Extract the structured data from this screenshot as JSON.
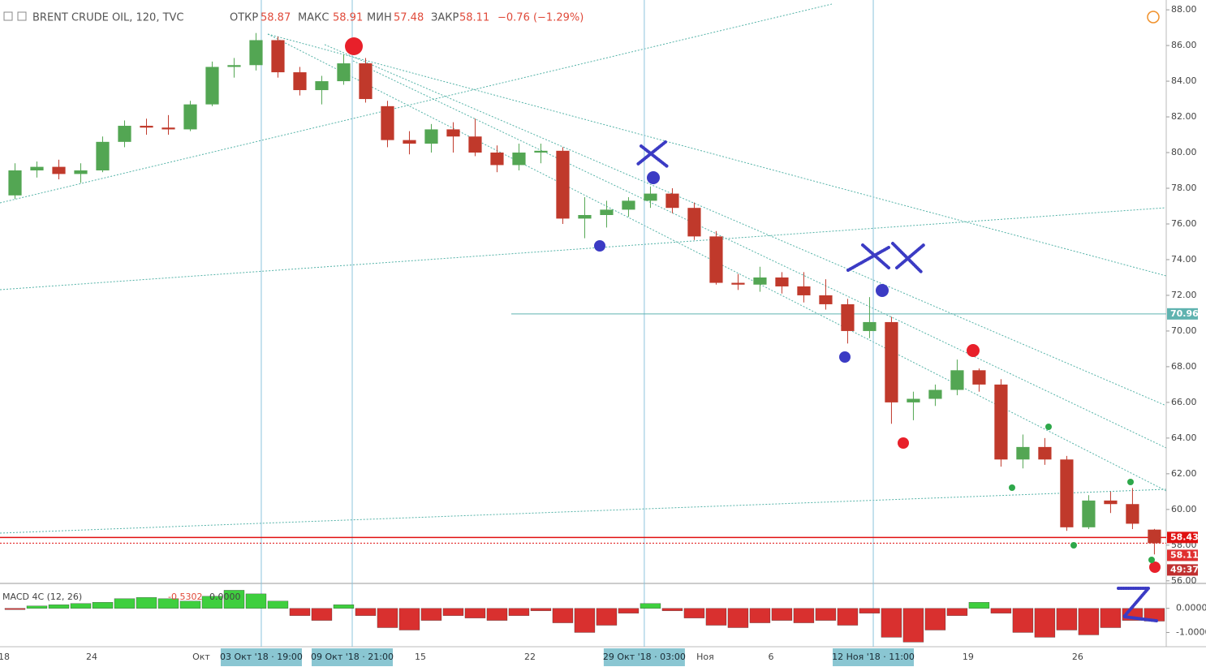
{
  "chart_data": {
    "type": "candlestick",
    "title": "BRENT CRUDE OIL, 120, TVC",
    "open_label": "ОТКР",
    "high_label": "МАКС",
    "low_label": "МИН",
    "close_label": "ЗАКР",
    "change_text": "−0.76 (−1.29%)",
    "countdown": "49:37",
    "categories": [
      "18",
      null,
      null,
      null,
      "24",
      null,
      null,
      null,
      null,
      "Окт",
      null,
      null,
      null,
      null,
      null,
      null,
      null,
      null,
      null,
      "15",
      null,
      null,
      null,
      null,
      "22",
      null,
      null,
      null,
      null,
      null,
      null,
      null,
      "Ноя",
      null,
      null,
      "6",
      null,
      null,
      null,
      null,
      null,
      null,
      null,
      null,
      "19",
      null,
      null,
      null,
      null,
      "26",
      null,
      null,
      null
    ],
    "xlim": [
      -0.185,
      53.04
    ],
    "open": [
      77.6,
      79.0,
      79.2,
      78.8,
      79.0,
      80.6,
      81.5,
      81.4,
      81.3,
      82.7,
      84.8,
      84.9,
      86.3,
      84.5,
      83.5,
      84.0,
      85.0,
      82.6,
      80.7,
      80.5,
      81.3,
      80.9,
      80.0,
      79.3,
      80.0,
      80.1,
      76.3,
      76.5,
      76.8,
      77.3,
      77.7,
      76.9,
      75.3,
      72.7,
      72.6,
      73.0,
      72.5,
      72.0,
      71.5,
      70.0,
      70.5,
      66.0,
      66.2,
      66.7,
      67.8,
      67.0,
      62.8,
      63.5,
      62.8,
      59.0,
      60.5,
      60.3,
      58.87
    ],
    "high": [
      79.4,
      79.5,
      79.6,
      79.4,
      80.9,
      81.8,
      81.9,
      82.1,
      82.9,
      85.1,
      85.3,
      86.7,
      86.5,
      84.8,
      84.3,
      85.5,
      85.3,
      82.9,
      81.2,
      81.6,
      81.7,
      81.9,
      80.4,
      80.5,
      80.5,
      80.3,
      77.5,
      77.3,
      77.5,
      78.1,
      78.0,
      77.2,
      75.6,
      73.2,
      73.6,
      73.3,
      73.3,
      72.9,
      71.8,
      71.9,
      70.8,
      66.6,
      67.0,
      68.4,
      67.9,
      67.3,
      64.2,
      64.0,
      63.0,
      60.8,
      61.0,
      61.2,
      58.91
    ],
    "low": [
      77.4,
      78.6,
      78.5,
      78.3,
      78.9,
      80.3,
      81.0,
      81.0,
      81.2,
      82.6,
      84.2,
      84.6,
      84.2,
      83.2,
      82.7,
      83.8,
      82.8,
      80.3,
      79.9,
      80.0,
      80.0,
      79.8,
      78.9,
      79.0,
      79.4,
      76.0,
      75.2,
      75.8,
      76.4,
      76.9,
      76.6,
      75.1,
      72.6,
      72.3,
      72.2,
      72.1,
      71.6,
      71.2,
      69.3,
      69.6,
      64.8,
      65.0,
      65.8,
      66.4,
      66.6,
      62.4,
      62.3,
      62.5,
      58.8,
      58.9,
      59.8,
      58.9,
      57.48
    ],
    "close": [
      79.0,
      79.2,
      78.8,
      79.0,
      80.6,
      81.5,
      81.4,
      81.3,
      82.7,
      84.8,
      84.9,
      86.3,
      84.5,
      83.5,
      84.0,
      85.0,
      83.0,
      80.7,
      80.5,
      81.3,
      80.9,
      80.0,
      79.3,
      80.0,
      80.1,
      76.3,
      76.5,
      76.8,
      77.3,
      77.7,
      76.9,
      75.3,
      72.7,
      72.6,
      73.0,
      72.5,
      72.0,
      71.5,
      70.0,
      70.5,
      66.0,
      66.2,
      66.7,
      67.8,
      67.0,
      62.8,
      63.5,
      62.8,
      59.0,
      60.5,
      60.3,
      59.2,
      58.11
    ],
    "up_color": "#53a653",
    "down_color": "#c0392b",
    "ylim": [
      55.9,
      88.55
    ],
    "yticks": [
      {
        "value": 56,
        "label": "56.00"
      },
      {
        "value": 58,
        "label": "58.00"
      },
      {
        "value": 60,
        "label": "60.00"
      },
      {
        "value": 62,
        "label": "62.00"
      },
      {
        "value": 64,
        "label": "64.00"
      },
      {
        "value": 66,
        "label": "66.00"
      },
      {
        "value": 68,
        "label": "68.00"
      },
      {
        "value": 70,
        "label": "70.00"
      },
      {
        "value": 72,
        "label": "72.00"
      },
      {
        "value": 74,
        "label": "74.00"
      },
      {
        "value": 76,
        "label": "76.00"
      },
      {
        "value": 78,
        "label": "78.00"
      },
      {
        "value": 80,
        "label": "80.00"
      },
      {
        "value": 82,
        "label": "82.00"
      },
      {
        "value": 84,
        "label": "84.00"
      },
      {
        "value": 86,
        "label": "86.00"
      },
      {
        "value": 88,
        "label": "88.00"
      }
    ],
    "price_lines": [
      {
        "value": 70.96,
        "color": "#5fb3b0"
      },
      {
        "value": 58.43,
        "color": "#e01010"
      }
    ],
    "crosshairs": [
      {
        "x": 11.74,
        "label": "03 Окт '18 · 19:00"
      },
      {
        "x": 15.89,
        "label": "09 Окт '18 · 21:00"
      },
      {
        "x": 29.22,
        "label": "29 Окт '18 · 03:00"
      },
      {
        "x": 39.67,
        "label": "12 Ноя '18 · 11:00"
      }
    ],
    "macd": {
      "name": "MACD 4C (12, 26)",
      "value_label": "-0.5302",
      "signal_label": "0.0000",
      "values": [
        -0.05,
        0.1,
        0.15,
        0.2,
        0.25,
        0.4,
        0.45,
        0.4,
        0.3,
        0.5,
        0.75,
        0.6,
        0.3,
        -0.3,
        -0.5,
        0.15,
        -0.3,
        -0.8,
        -0.9,
        -0.5,
        -0.3,
        -0.4,
        -0.5,
        -0.3,
        -0.1,
        -0.6,
        -1.0,
        -0.7,
        -0.2,
        0.2,
        -0.1,
        -0.4,
        -0.7,
        -0.8,
        -0.6,
        -0.5,
        -0.6,
        -0.5,
        -0.7,
        -0.2,
        -1.2,
        -1.4,
        -0.9,
        -0.3,
        0.25,
        -0.2,
        -1.0,
        -1.2,
        -0.9,
        -1.1,
        -0.8,
        -0.5,
        -0.5302
      ],
      "pos_color": "#3ecf3e",
      "neg_color": "#d9302f",
      "y2lim": [
        -1.59,
        1.0
      ],
      "y2ticks": [
        {
          "value": 0,
          "label": "0.0000"
        },
        {
          "value": -1,
          "label": "-1.0000"
        }
      ]
    }
  }
}
